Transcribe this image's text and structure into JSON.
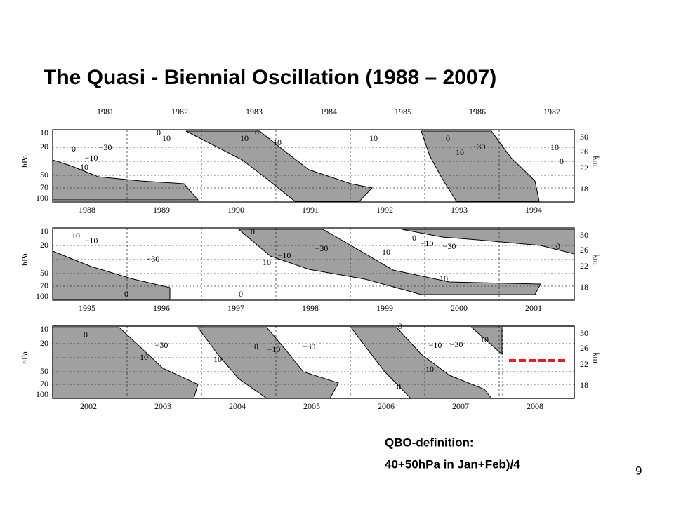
{
  "title": "The Quasi - Biennial Oscillation (1988 – 2007)",
  "panels": [
    {
      "years_above": [
        "1981",
        "1982",
        "1983",
        "1984",
        "1985",
        "1986",
        "1987"
      ],
      "contour_labels": [
        "0",
        "−30",
        "−10",
        "10",
        "0",
        "10",
        "10",
        "0",
        "10",
        "10",
        "0",
        "10",
        "−30",
        "10",
        "0"
      ]
    },
    {
      "years_above": [
        "1988",
        "1989",
        "1990",
        "1991",
        "1992",
        "1993",
        "1994"
      ],
      "contour_labels": [
        "10",
        "−10",
        "−30",
        "0",
        "10",
        "−10",
        "−30",
        "10",
        "0",
        "−10",
        "−30",
        "10",
        "0",
        "0",
        "0"
      ]
    },
    {
      "years_above": [
        "1995",
        "1996",
        "1997",
        "1998",
        "1999",
        "2000",
        "2001"
      ],
      "contour_labels": [
        "0",
        "−30",
        "10",
        "10",
        "0",
        "−10",
        "−30",
        "0",
        "−10",
        "−30",
        "10",
        "10",
        "0"
      ]
    }
  ],
  "years_bottom": [
    "2002",
    "2003",
    "2004",
    "2005",
    "2006",
    "2007",
    "2008"
  ],
  "pressure_ticks": [
    "10",
    "20",
    "50",
    "70",
    "100"
  ],
  "pressure_unit": "hPa",
  "height_ticks": [
    "30",
    "26",
    "22",
    "18"
  ],
  "height_unit": "km",
  "note": [
    "QBO-definition:",
    "40+50hPa in Jan+Feb)/4"
  ],
  "page_number": "9"
}
